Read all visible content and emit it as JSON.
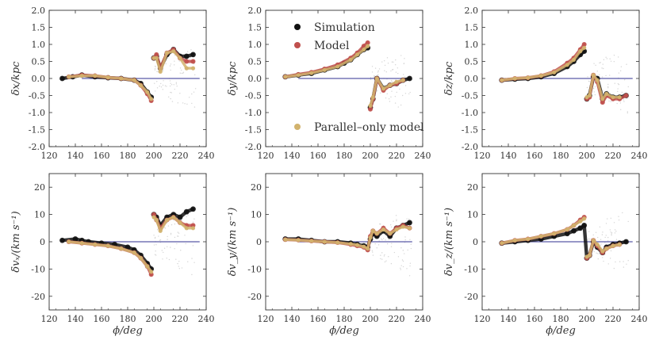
{
  "colors": {
    "simulation": "#111111",
    "model": "#c0504d",
    "parallel": "#d2b36e",
    "zero_line": "#5a5aa8",
    "axis": "#333333"
  },
  "legend": {
    "simulation": "Simulation",
    "model": "Model",
    "parallel": "Parallel–only model"
  },
  "x_axis": {
    "label": "ϕ/deg",
    "range": [
      120,
      240
    ],
    "ticks": [
      "120",
      "140",
      "160",
      "180",
      "200",
      "220",
      "240"
    ]
  },
  "chart_data": [
    {
      "type": "scatter",
      "id": "dx",
      "row": 0,
      "col": 0,
      "ylabel": "δx/kpc",
      "ylim": [
        -2.0,
        2.0
      ],
      "yticks": [
        "2.0",
        "1.5",
        "1.0",
        "0.5",
        "0.0",
        "-0.5",
        "-1.0",
        "-1.5",
        "-2.0"
      ],
      "ytick_values": [
        2.0,
        1.5,
        1.0,
        0.5,
        0.0,
        -0.5,
        -1.0,
        -1.5,
        -2.0
      ],
      "zero_line": [
        145,
        235
      ],
      "series": [
        {
          "name": "Simulation",
          "x": [
            130,
            138,
            145,
            155,
            165,
            175,
            185,
            190,
            195,
            198,
            200,
            202,
            205,
            210,
            215,
            220,
            225,
            230
          ],
          "y": [
            0.0,
            0.05,
            0.1,
            0.05,
            0.02,
            0.0,
            -0.05,
            -0.15,
            -0.4,
            -0.55,
            0.6,
            0.65,
            0.3,
            0.7,
            0.85,
            0.65,
            0.65,
            0.7
          ]
        },
        {
          "name": "Model",
          "x": [
            135,
            145,
            155,
            165,
            175,
            185,
            190,
            195,
            198,
            200,
            202,
            205,
            210,
            215,
            220,
            225,
            230
          ],
          "y": [
            0.05,
            0.1,
            0.08,
            0.03,
            0.0,
            -0.05,
            -0.2,
            -0.45,
            -0.65,
            0.6,
            0.7,
            0.3,
            0.75,
            0.85,
            0.6,
            0.5,
            0.5
          ]
        },
        {
          "name": "Parallel–only model",
          "x": [
            135,
            145,
            155,
            165,
            175,
            185,
            190,
            195,
            198,
            200,
            202,
            205,
            210,
            215,
            220,
            225,
            230
          ],
          "y": [
            0.05,
            0.08,
            0.08,
            0.03,
            0.0,
            -0.05,
            -0.2,
            -0.4,
            -0.6,
            0.6,
            0.6,
            0.2,
            0.75,
            0.8,
            0.6,
            0.3,
            0.3
          ]
        }
      ]
    },
    {
      "type": "scatter",
      "id": "dy",
      "row": 0,
      "col": 1,
      "ylabel": "δy/kpc",
      "ylim": [
        -2.0,
        2.0
      ],
      "yticks": [
        "2.0",
        "1.5",
        "1.0",
        "0.5",
        "0.0",
        "-0.5",
        "-1.0",
        "-1.5",
        "-2.0"
      ],
      "ytick_values": [
        2.0,
        1.5,
        1.0,
        0.5,
        0.0,
        -0.5,
        -1.0,
        -1.5,
        -2.0
      ],
      "zero_line": [
        145,
        230
      ],
      "series": [
        {
          "name": "Simulation",
          "x": [
            135,
            145,
            155,
            165,
            175,
            180,
            185,
            190,
            195,
            198,
            200,
            202,
            205,
            210,
            215,
            220,
            225,
            230
          ],
          "y": [
            0.05,
            0.1,
            0.15,
            0.25,
            0.35,
            0.45,
            0.55,
            0.7,
            0.85,
            0.9,
            -0.85,
            -0.6,
            0.0,
            -0.3,
            -0.2,
            -0.15,
            -0.05,
            0.0
          ]
        },
        {
          "name": "Model",
          "x": [
            135,
            145,
            155,
            165,
            175,
            185,
            190,
            195,
            198,
            200,
            202,
            205,
            210,
            215,
            220,
            225
          ],
          "y": [
            0.05,
            0.12,
            0.18,
            0.28,
            0.4,
            0.6,
            0.75,
            0.95,
            1.05,
            -0.9,
            -0.6,
            0.0,
            -0.35,
            -0.2,
            -0.15,
            -0.05
          ]
        },
        {
          "name": "Parallel–only model",
          "x": [
            135,
            145,
            155,
            165,
            175,
            185,
            190,
            195,
            198,
            200,
            202,
            205,
            210,
            215,
            220,
            225
          ],
          "y": [
            0.05,
            0.1,
            0.16,
            0.25,
            0.35,
            0.55,
            0.7,
            0.85,
            0.95,
            -0.8,
            -0.55,
            0.0,
            -0.3,
            -0.2,
            -0.1,
            -0.05
          ]
        }
      ]
    },
    {
      "type": "scatter",
      "id": "dz",
      "row": 0,
      "col": 2,
      "ylabel": "δz/kpc",
      "ylim": [
        -2.0,
        2.0
      ],
      "yticks": [
        "2.0",
        "1.5",
        "1.0",
        "0.5",
        "0.0",
        "-0.5",
        "-1.0",
        "-1.5",
        "-2.0"
      ],
      "ytick_values": [
        2.0,
        1.5,
        1.0,
        0.5,
        0.0,
        -0.5,
        -1.0,
        -1.5,
        -2.0
      ],
      "zero_line": [
        145,
        235
      ],
      "series": [
        {
          "name": "Simulation",
          "x": [
            135,
            145,
            155,
            165,
            175,
            185,
            190,
            195,
            198,
            200,
            202,
            205,
            208,
            212,
            215,
            220,
            225,
            230
          ],
          "y": [
            -0.05,
            -0.02,
            0.0,
            0.05,
            0.15,
            0.35,
            0.5,
            0.7,
            0.8,
            -0.6,
            -0.5,
            0.05,
            0.0,
            -0.6,
            -0.45,
            -0.55,
            -0.55,
            -0.5
          ]
        },
        {
          "name": "Model",
          "x": [
            135,
            145,
            155,
            165,
            175,
            185,
            190,
            195,
            198,
            200,
            202,
            205,
            208,
            212,
            215,
            220,
            225,
            230
          ],
          "y": [
            -0.05,
            0.0,
            0.02,
            0.08,
            0.2,
            0.45,
            0.6,
            0.85,
            1.0,
            -0.6,
            -0.55,
            0.1,
            -0.1,
            -0.7,
            -0.5,
            -0.6,
            -0.6,
            -0.5
          ]
        },
        {
          "name": "Parallel–only model",
          "x": [
            135,
            145,
            155,
            165,
            175,
            185,
            190,
            195,
            198,
            200,
            202,
            205,
            208,
            212,
            215,
            220,
            225
          ],
          "y": [
            -0.05,
            0.0,
            0.02,
            0.08,
            0.18,
            0.4,
            0.55,
            0.8,
            0.9,
            -0.55,
            -0.5,
            0.1,
            -0.05,
            -0.6,
            -0.45,
            -0.55,
            -0.55
          ]
        }
      ]
    },
    {
      "type": "scatter",
      "id": "dvx",
      "row": 1,
      "col": 0,
      "ylabel": "δvₓ/(km s⁻¹)",
      "ylim": [
        -25,
        25
      ],
      "yticks": [
        "20",
        "10",
        "0",
        "-10",
        "-20"
      ],
      "ytick_values": [
        20,
        10,
        0,
        -10,
        -20
      ],
      "zero_line": [
        145,
        235
      ],
      "series": [
        {
          "name": "Simulation",
          "x": [
            130,
            140,
            145,
            150,
            160,
            170,
            180,
            185,
            190,
            195,
            198,
            200,
            202,
            205,
            210,
            215,
            220,
            225,
            230
          ],
          "y": [
            0.5,
            1.0,
            0.5,
            0.0,
            -0.5,
            -1.0,
            -2.0,
            -3.0,
            -5.0,
            -8.0,
            -10.0,
            10.0,
            9.0,
            6.0,
            9.0,
            10.0,
            9.0,
            11.0,
            12.0
          ]
        },
        {
          "name": "Model",
          "x": [
            135,
            145,
            155,
            165,
            175,
            185,
            190,
            195,
            198,
            200,
            202,
            205,
            210,
            215,
            220,
            225,
            230
          ],
          "y": [
            0.0,
            -0.5,
            -1.0,
            -1.5,
            -2.5,
            -4.0,
            -6.0,
            -9.0,
            -12.0,
            10.0,
            8.0,
            5.0,
            8.0,
            9.0,
            7.0,
            6.0,
            6.0
          ]
        },
        {
          "name": "Parallel–only model",
          "x": [
            135,
            145,
            155,
            165,
            175,
            185,
            190,
            195,
            198,
            200,
            202,
            205,
            210,
            215,
            220,
            225,
            230
          ],
          "y": [
            0.0,
            -0.5,
            -1.0,
            -1.5,
            -2.5,
            -4.0,
            -6.0,
            -9.0,
            -11.0,
            9.0,
            8.0,
            4.0,
            8.0,
            9.0,
            7.0,
            5.0,
            5.0
          ]
        }
      ]
    },
    {
      "type": "scatter",
      "id": "dvy",
      "row": 1,
      "col": 1,
      "ylabel": "δv_y/(km s⁻¹)",
      "ylim": [
        -25,
        25
      ],
      "yticks": [
        "20",
        "10",
        "0",
        "-10",
        "-20"
      ],
      "ytick_values": [
        20,
        10,
        0,
        -10,
        -20
      ],
      "zero_line": [
        145,
        232
      ],
      "series": [
        {
          "name": "Simulation",
          "x": [
            135,
            145,
            155,
            165,
            175,
            185,
            190,
            195,
            198,
            200,
            202,
            205,
            210,
            215,
            220,
            225,
            230
          ],
          "y": [
            1.0,
            1.0,
            0.5,
            0.0,
            0.0,
            -0.5,
            -1.0,
            -1.5,
            -2.0,
            1.0,
            3.0,
            2.0,
            4.0,
            2.0,
            5.0,
            6.0,
            7.0
          ]
        },
        {
          "name": "Model",
          "x": [
            135,
            145,
            155,
            165,
            175,
            185,
            190,
            195,
            198,
            200,
            202,
            205,
            210,
            215,
            220,
            225,
            230
          ],
          "y": [
            0.8,
            0.6,
            0.3,
            0.0,
            -0.3,
            -1.0,
            -1.5,
            -2.0,
            -3.0,
            2.0,
            4.0,
            3.0,
            5.0,
            3.0,
            5.0,
            6.0,
            5.0
          ]
        },
        {
          "name": "Parallel–only model",
          "x": [
            135,
            145,
            155,
            165,
            175,
            185,
            190,
            195,
            198,
            200,
            202,
            205,
            210,
            215,
            220,
            225,
            230
          ],
          "y": [
            0.8,
            0.6,
            0.3,
            0.0,
            -0.3,
            -0.8,
            -1.2,
            -1.8,
            -2.5,
            1.5,
            4.0,
            3.0,
            4.5,
            3.0,
            4.5,
            5.5,
            5.0
          ]
        }
      ]
    },
    {
      "type": "scatter",
      "id": "dvz",
      "row": 1,
      "col": 2,
      "ylabel": "δv_z/(km s⁻¹)",
      "ylim": [
        -25,
        25
      ],
      "yticks": [
        "20",
        "10",
        "0",
        "-10",
        "-20"
      ],
      "ytick_values": [
        20,
        10,
        0,
        -10,
        -20
      ],
      "zero_line": [
        145,
        235
      ],
      "series": [
        {
          "name": "Simulation",
          "x": [
            135,
            145,
            155,
            165,
            175,
            185,
            190,
            195,
            198,
            200,
            202,
            205,
            208,
            212,
            215,
            220,
            225,
            230
          ],
          "y": [
            -0.5,
            0.0,
            0.5,
            1.0,
            2.0,
            3.0,
            4.0,
            5.0,
            6.0,
            -6.0,
            -5.0,
            0.0,
            -2.0,
            -4.0,
            -2.0,
            -1.0,
            -0.5,
            0.0
          ]
        },
        {
          "name": "Model",
          "x": [
            135,
            145,
            155,
            165,
            175,
            185,
            190,
            195,
            198,
            200,
            202,
            205,
            208,
            212,
            215,
            220,
            225
          ],
          "y": [
            -0.5,
            0.5,
            1.0,
            2.0,
            3.0,
            4.5,
            6.0,
            8.0,
            9.0,
            -6.0,
            -5.0,
            0.5,
            -1.5,
            -4.0,
            -2.5,
            -1.5,
            -1.0
          ]
        },
        {
          "name": "Parallel–only model",
          "x": [
            135,
            145,
            155,
            165,
            175,
            185,
            190,
            195,
            198,
            200,
            202,
            205,
            208,
            212,
            215,
            220,
            225
          ],
          "y": [
            -0.5,
            0.5,
            1.0,
            2.0,
            3.0,
            4.5,
            6.0,
            7.5,
            8.5,
            -5.5,
            -5.0,
            0.5,
            -1.0,
            -3.5,
            -2.5,
            -1.5,
            -1.0
          ]
        }
      ]
    }
  ]
}
